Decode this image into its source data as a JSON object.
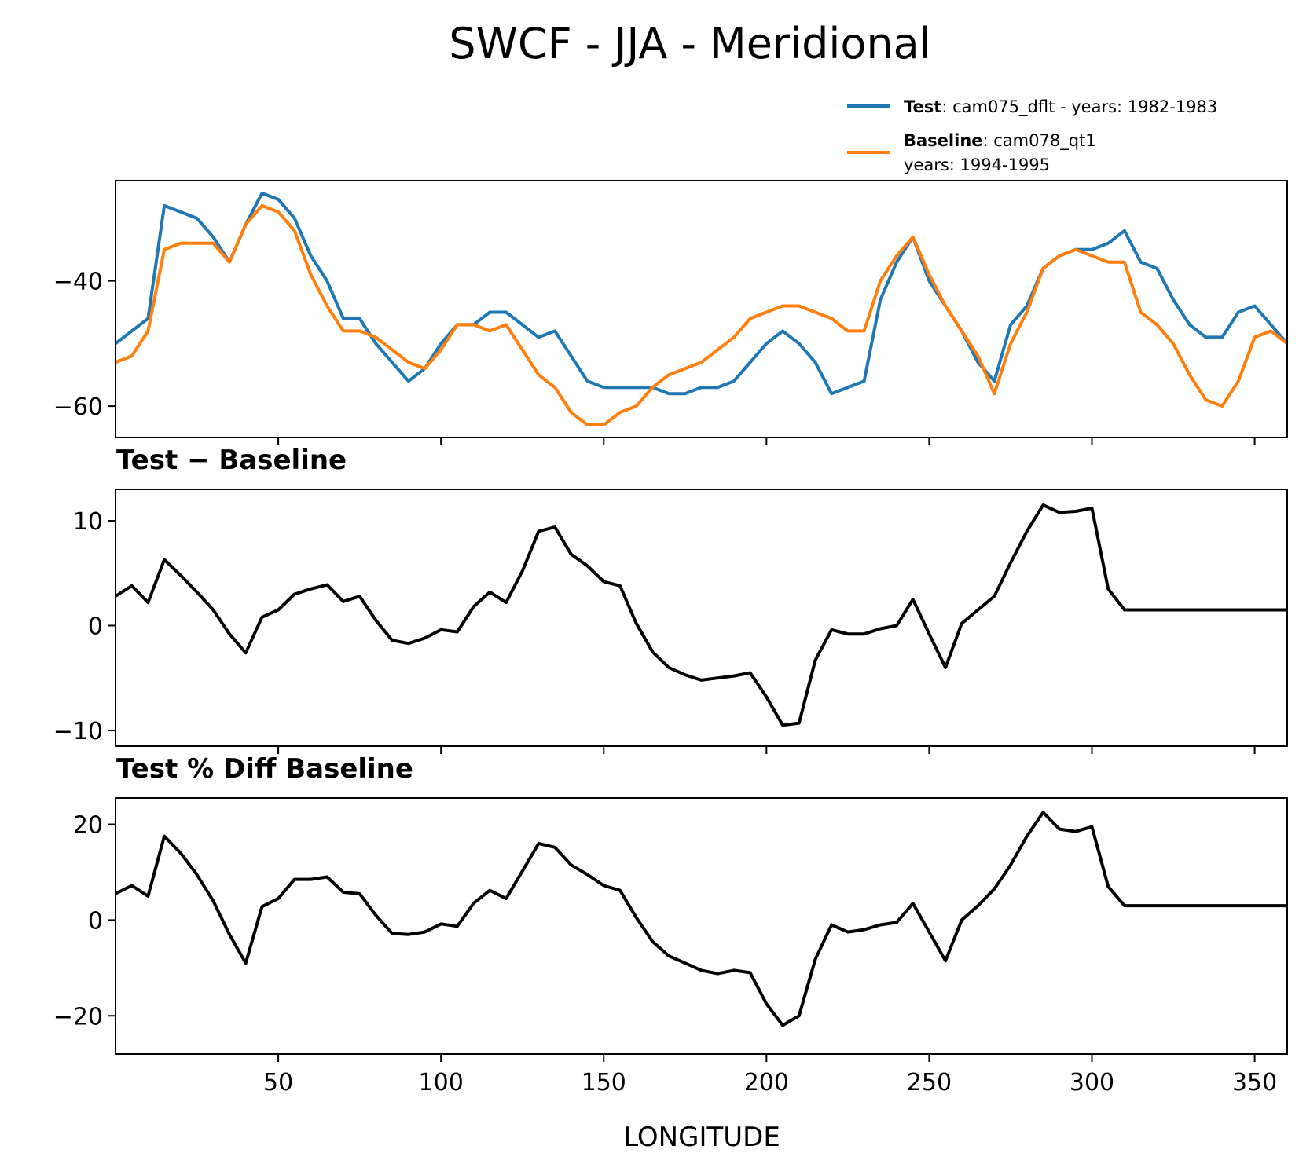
{
  "figure": {
    "title": "SWCF - JJA - Meridional",
    "xlabel": "LONGITUDE"
  },
  "legend": {
    "test_bold": "Test",
    "test_rest": ": cam075_dflt - years: 1982-1983",
    "baseline_bold": "Baseline",
    "baseline_rest": ": cam078_qt1",
    "baseline_line2": "years: 1994-1995",
    "placement": "top-right, above first panel"
  },
  "colors": {
    "test": "#1f77b4",
    "baseline": "#ff7f0e",
    "diff": "#000000"
  },
  "chart_data": [
    {
      "type": "line",
      "title": "",
      "xlim": [
        0,
        360
      ],
      "ylim": [
        -65,
        -24
      ],
      "yticks": [
        -40,
        -60
      ],
      "grid": false,
      "x": [
        0,
        5,
        10,
        15,
        20,
        25,
        30,
        35,
        40,
        45,
        50,
        55,
        60,
        65,
        70,
        75,
        80,
        85,
        90,
        95,
        100,
        105,
        110,
        115,
        120,
        125,
        130,
        135,
        140,
        145,
        150,
        155,
        160,
        165,
        170,
        175,
        180,
        185,
        190,
        195,
        200,
        205,
        210,
        215,
        220,
        225,
        230,
        235,
        240,
        245,
        250,
        255,
        260,
        265,
        270,
        275,
        280,
        285,
        290,
        295,
        300,
        305,
        310,
        315,
        320,
        325,
        330,
        335,
        340,
        345,
        350,
        355,
        360
      ],
      "series": [
        {
          "name": "Test",
          "values": [
            -50,
            -48,
            -46,
            -28,
            -29,
            -30,
            -33,
            -37,
            -31,
            -26,
            -27,
            -30,
            -36,
            -40,
            -46,
            -46,
            -50,
            -53,
            -56,
            -54,
            -50,
            -47,
            -47,
            -45,
            -45,
            -47,
            -49,
            -48,
            -52,
            -56,
            -57,
            -57,
            -57,
            -57,
            -58,
            -58,
            -57,
            -57,
            -56,
            -53,
            -50,
            -48,
            -50,
            -53,
            -58,
            -57,
            -56,
            -43,
            -37,
            -33,
            -40,
            -44,
            -48,
            -53,
            -56,
            -47,
            -44,
            -38,
            -36,
            -35,
            -35,
            -34,
            -32,
            -37,
            -38,
            -43,
            -47,
            -49,
            -49,
            -45,
            -44,
            -47,
            -50
          ]
        },
        {
          "name": "Baseline",
          "values": [
            -53,
            -52,
            -48,
            -35,
            -34,
            -34,
            -34,
            -37,
            -31,
            -28,
            -29,
            -32,
            -39,
            -44,
            -48,
            -48,
            -49,
            -51,
            -53,
            -54,
            -51,
            -47,
            -47,
            -48,
            -47,
            -51,
            -55,
            -57,
            -61,
            -63,
            -63,
            -61,
            -60,
            -57,
            -55,
            -54,
            -53,
            -51,
            -49,
            -46,
            -45,
            -44,
            -44,
            -45,
            -46,
            -48,
            -48,
            -40,
            -36,
            -33,
            -39,
            -44,
            -48,
            -52,
            -58,
            -50,
            -45,
            -38,
            -36,
            -35,
            -36,
            -37,
            -37,
            -45,
            -47,
            -50,
            -55,
            -59,
            -60,
            -56,
            -49,
            -48,
            -50
          ]
        }
      ]
    },
    {
      "type": "line",
      "title": "Test − Baseline",
      "xlim": [
        0,
        360
      ],
      "ylim": [
        -11.5,
        13
      ],
      "yticks": [
        10,
        0,
        -10
      ],
      "grid": false,
      "x": [
        0,
        5,
        10,
        15,
        20,
        25,
        30,
        35,
        40,
        45,
        50,
        55,
        60,
        65,
        70,
        75,
        80,
        85,
        90,
        95,
        100,
        105,
        110,
        115,
        120,
        125,
        130,
        135,
        140,
        145,
        150,
        155,
        160,
        165,
        170,
        175,
        180,
        185,
        190,
        195,
        200,
        205,
        210,
        215,
        220,
        225,
        230,
        235,
        240,
        245,
        250,
        255,
        260,
        265,
        270,
        275,
        280,
        285,
        290,
        295,
        300,
        305,
        310,
        315,
        320,
        325,
        330,
        335,
        340,
        345,
        350,
        355,
        360
      ],
      "series": [
        {
          "name": "Test − Baseline",
          "values": [
            2.8,
            3.8,
            2.2,
            6.3,
            4.8,
            3.2,
            1.5,
            -0.8,
            -2.6,
            0.8,
            1.5,
            3.0,
            3.5,
            3.9,
            2.3,
            2.8,
            0.5,
            -1.4,
            -1.7,
            -1.2,
            -0.4,
            -0.6,
            1.8,
            3.2,
            2.2,
            5.2,
            9.0,
            9.4,
            6.8,
            5.7,
            4.2,
            3.8,
            0.2,
            -2.5,
            -4.0,
            -4.7,
            -5.2,
            -5.0,
            -4.8,
            -4.5,
            -6.8,
            -9.5,
            -9.3,
            -3.3,
            -0.4,
            -0.8,
            -0.8,
            -0.3,
            0.0,
            2.5,
            -0.8,
            -4.0,
            0.2,
            1.5,
            2.8,
            6.0,
            9.0,
            11.5,
            10.8,
            10.9,
            11.2,
            3.5,
            1.5,
            1.5,
            1.5,
            1.5,
            1.5,
            1.5,
            1.5,
            1.5,
            1.5,
            1.5,
            1.5
          ]
        }
      ]
    },
    {
      "type": "line",
      "title": "Test % Diff Baseline",
      "xlim": [
        0,
        360
      ],
      "ylim": [
        -28,
        25.5
      ],
      "yticks": [
        20,
        0,
        -20
      ],
      "grid": false,
      "x": [
        0,
        5,
        10,
        15,
        20,
        25,
        30,
        35,
        40,
        45,
        50,
        55,
        60,
        65,
        70,
        75,
        80,
        85,
        90,
        95,
        100,
        105,
        110,
        115,
        120,
        125,
        130,
        135,
        140,
        145,
        150,
        155,
        160,
        165,
        170,
        175,
        180,
        185,
        190,
        195,
        200,
        205,
        210,
        215,
        220,
        225,
        230,
        235,
        240,
        245,
        250,
        255,
        260,
        265,
        270,
        275,
        280,
        285,
        290,
        295,
        300,
        305,
        310,
        315,
        320,
        325,
        330,
        335,
        340,
        345,
        350,
        355,
        360
      ],
      "series": [
        {
          "name": "Test % Diff Baseline",
          "values": [
            5.5,
            7.2,
            5.0,
            17.5,
            14.0,
            9.5,
            4.0,
            -3.0,
            -9.0,
            2.8,
            4.5,
            8.5,
            8.5,
            9.0,
            5.8,
            5.5,
            1.0,
            -2.8,
            -3.0,
            -2.5,
            -0.8,
            -1.3,
            3.5,
            6.2,
            4.5,
            10.2,
            16.0,
            15.2,
            11.5,
            9.5,
            7.2,
            6.2,
            0.5,
            -4.5,
            -7.5,
            -9.0,
            -10.5,
            -11.2,
            -10.5,
            -11.0,
            -17.5,
            -22.0,
            -20.0,
            -8.2,
            -1.0,
            -2.5,
            -2.0,
            -1.0,
            -0.5,
            3.5,
            -2.5,
            -8.5,
            0.0,
            3.0,
            6.5,
            11.5,
            17.5,
            22.5,
            19.0,
            18.5,
            19.5,
            7.0,
            3.0,
            3.0,
            3.0,
            3.0,
            3.0,
            3.0,
            3.0,
            3.0,
            3.0,
            3.0,
            3.0
          ]
        }
      ]
    }
  ],
  "xticks": [
    50,
    100,
    150,
    200,
    250,
    300,
    350
  ]
}
